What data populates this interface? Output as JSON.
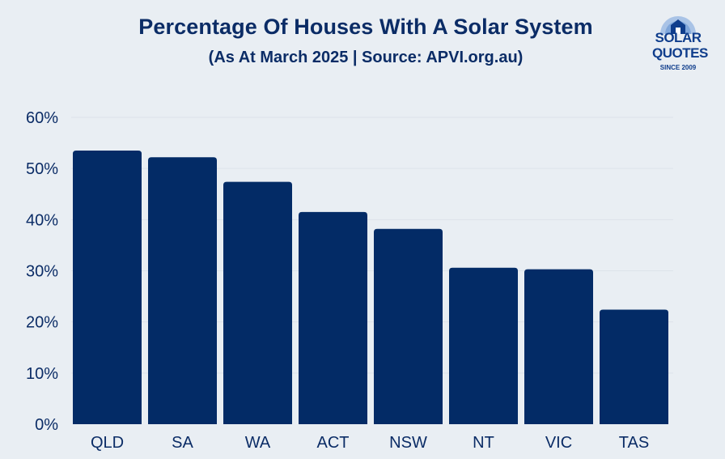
{
  "chart_data": {
    "type": "bar",
    "title": "Percentage Of Houses With A Solar System",
    "subtitle": "(As At March 2025 | Source: APVI.org.au)",
    "categories": [
      "QLD",
      "SA",
      "WA",
      "ACT",
      "NSW",
      "NT",
      "VIC",
      "TAS"
    ],
    "values": [
      53.5,
      52.2,
      47.4,
      41.5,
      38.2,
      30.6,
      30.3,
      22.4
    ],
    "ylim": [
      0,
      60
    ],
    "yticks": [
      0,
      10,
      20,
      30,
      40,
      50,
      60
    ],
    "ytick_labels": [
      "0%",
      "10%",
      "20%",
      "30%",
      "40%",
      "50%",
      "60%"
    ],
    "xlabel": "",
    "ylabel": "",
    "grid": true,
    "bar_color": "#032b66",
    "grid_color": "#dde3ea",
    "text_color": "#0b2c66"
  },
  "logo": {
    "line1": "SOLAR",
    "line2": "QUOTES",
    "line3": "SINCE 2009",
    "color": "#0f3d8c",
    "sky_color": "#a9c3e6"
  }
}
